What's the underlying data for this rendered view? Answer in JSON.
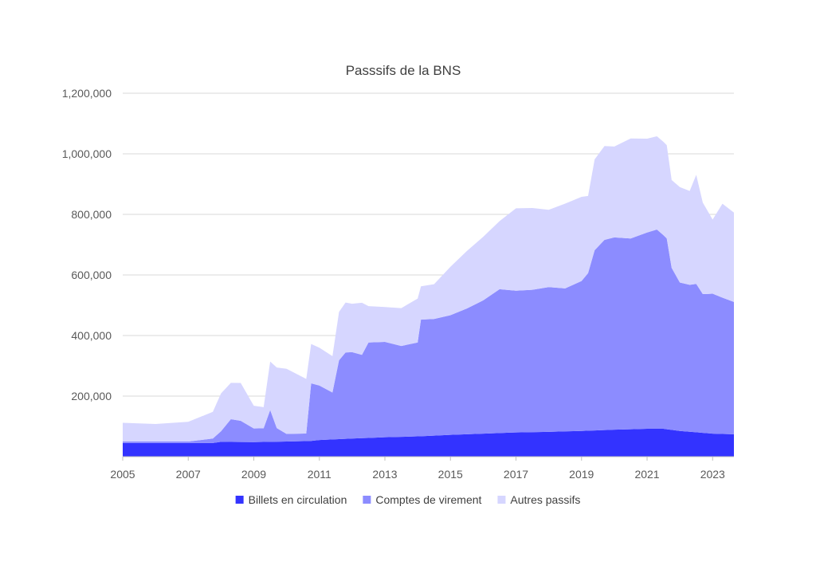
{
  "chart_data": {
    "type": "area",
    "stacked": true,
    "title": "Passsifs de la BNS",
    "xlabel": "",
    "ylabel": "",
    "xlim": [
      2005.0,
      2023.65
    ],
    "ylim": [
      0,
      1200000
    ],
    "x_ticks": [
      "2005",
      "2007",
      "2009",
      "2011",
      "2013",
      "2015",
      "2017",
      "2019",
      "2021",
      "2023"
    ],
    "y_ticks": [
      "1,200,000",
      "1,000,000",
      "800,000",
      "600,000",
      "400,000",
      "200,000"
    ],
    "y_tick_values": [
      1200000,
      1000000,
      800000,
      600000,
      400000,
      200000
    ],
    "grid": "horizontal",
    "legend_position": "bottom",
    "series": [
      {
        "name": "Billets en circulation",
        "color": "#3333ff",
        "points": [
          [
            2005.0,
            45000
          ],
          [
            2006.0,
            45000
          ],
          [
            2007.0,
            45000
          ],
          [
            2007.75,
            45000
          ],
          [
            2008.0,
            49000
          ],
          [
            2009.0,
            48000
          ],
          [
            2010.0,
            50000
          ],
          [
            2010.75,
            52000
          ],
          [
            2011.0,
            55000
          ],
          [
            2012.0,
            60000
          ],
          [
            2013.0,
            64000
          ],
          [
            2014.0,
            67000
          ],
          [
            2015.0,
            72000
          ],
          [
            2016.0,
            76000
          ],
          [
            2017.0,
            80000
          ],
          [
            2018.0,
            82000
          ],
          [
            2019.0,
            85000
          ],
          [
            2020.0,
            89000
          ],
          [
            2021.0,
            92000
          ],
          [
            2021.5,
            92000
          ],
          [
            2022.0,
            85000
          ],
          [
            2023.0,
            76000
          ],
          [
            2023.65,
            74000
          ]
        ]
      },
      {
        "name": "Comptes de virement",
        "color": "#8c8cff",
        "points": [
          [
            2005.0,
            5000
          ],
          [
            2007.0,
            5000
          ],
          [
            2007.75,
            15000
          ],
          [
            2008.0,
            35000
          ],
          [
            2008.3,
            75000
          ],
          [
            2008.6,
            70000
          ],
          [
            2009.0,
            45000
          ],
          [
            2009.3,
            45000
          ],
          [
            2009.5,
            105000
          ],
          [
            2009.7,
            45000
          ],
          [
            2010.0,
            25000
          ],
          [
            2010.6,
            25000
          ],
          [
            2010.75,
            190000
          ],
          [
            2011.0,
            180000
          ],
          [
            2011.4,
            155000
          ],
          [
            2011.6,
            260000
          ],
          [
            2011.8,
            285000
          ],
          [
            2012.0,
            285000
          ],
          [
            2012.3,
            275000
          ],
          [
            2012.5,
            315000
          ],
          [
            2013.0,
            315000
          ],
          [
            2013.5,
            300000
          ],
          [
            2014.0,
            310000
          ],
          [
            2014.1,
            385000
          ],
          [
            2014.5,
            385000
          ],
          [
            2015.0,
            395000
          ],
          [
            2015.5,
            415000
          ],
          [
            2016.0,
            440000
          ],
          [
            2016.5,
            475000
          ],
          [
            2017.0,
            468000
          ],
          [
            2017.5,
            470000
          ],
          [
            2018.0,
            478000
          ],
          [
            2018.5,
            472000
          ],
          [
            2019.0,
            495000
          ],
          [
            2019.2,
            520000
          ],
          [
            2019.4,
            595000
          ],
          [
            2019.7,
            628000
          ],
          [
            2020.0,
            635000
          ],
          [
            2020.5,
            630000
          ],
          [
            2021.0,
            648000
          ],
          [
            2021.3,
            658000
          ],
          [
            2021.6,
            630000
          ],
          [
            2021.75,
            535000
          ],
          [
            2022.0,
            490000
          ],
          [
            2022.3,
            485000
          ],
          [
            2022.5,
            490000
          ],
          [
            2022.7,
            458000
          ],
          [
            2023.0,
            462000
          ],
          [
            2023.3,
            450000
          ],
          [
            2023.65,
            437000
          ]
        ]
      },
      {
        "name": "Autres passifs",
        "color": "#d6d6ff",
        "points": [
          [
            2005.0,
            62000
          ],
          [
            2006.0,
            58000
          ],
          [
            2007.0,
            65000
          ],
          [
            2007.75,
            88000
          ],
          [
            2008.0,
            125000
          ],
          [
            2008.3,
            120000
          ],
          [
            2008.6,
            125000
          ],
          [
            2009.0,
            75000
          ],
          [
            2009.3,
            70000
          ],
          [
            2009.5,
            160000
          ],
          [
            2009.7,
            200000
          ],
          [
            2010.0,
            215000
          ],
          [
            2010.6,
            180000
          ],
          [
            2010.75,
            130000
          ],
          [
            2011.0,
            125000
          ],
          [
            2011.4,
            120000
          ],
          [
            2011.6,
            160000
          ],
          [
            2011.8,
            165000
          ],
          [
            2012.0,
            160000
          ],
          [
            2012.3,
            172000
          ],
          [
            2012.5,
            120000
          ],
          [
            2013.0,
            115000
          ],
          [
            2013.5,
            125000
          ],
          [
            2014.0,
            145000
          ],
          [
            2014.1,
            110000
          ],
          [
            2014.5,
            115000
          ],
          [
            2015.0,
            160000
          ],
          [
            2015.5,
            190000
          ],
          [
            2016.0,
            210000
          ],
          [
            2016.5,
            225000
          ],
          [
            2017.0,
            272000
          ],
          [
            2017.5,
            270000
          ],
          [
            2018.0,
            255000
          ],
          [
            2018.5,
            280000
          ],
          [
            2019.0,
            278000
          ],
          [
            2019.2,
            255000
          ],
          [
            2019.4,
            300000
          ],
          [
            2019.7,
            310000
          ],
          [
            2020.0,
            300000
          ],
          [
            2020.5,
            330000
          ],
          [
            2021.0,
            310000
          ],
          [
            2021.3,
            308000
          ],
          [
            2021.6,
            308000
          ],
          [
            2021.75,
            290000
          ],
          [
            2022.0,
            315000
          ],
          [
            2022.3,
            310000
          ],
          [
            2022.5,
            360000
          ],
          [
            2022.7,
            302000
          ],
          [
            2023.0,
            245000
          ],
          [
            2023.3,
            310000
          ],
          [
            2023.65,
            295000
          ]
        ]
      }
    ]
  }
}
